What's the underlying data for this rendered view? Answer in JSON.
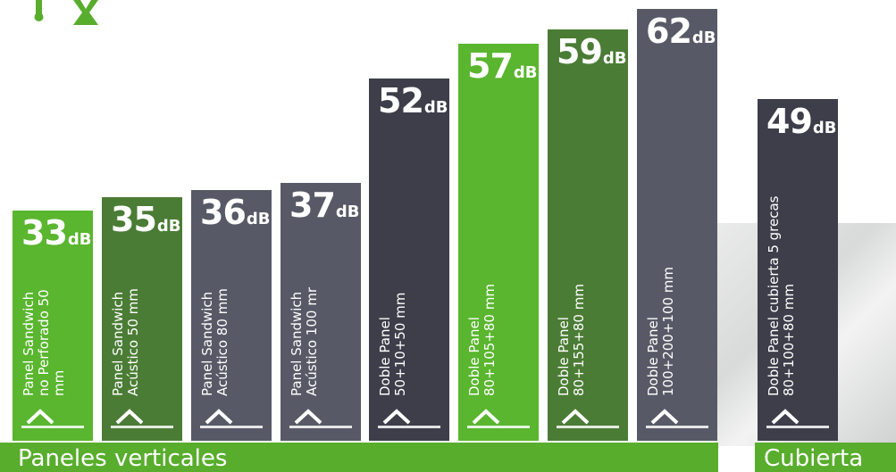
{
  "colors": {
    "green": "#5ab52f",
    "dark_green": "#4b7c35",
    "slate": "#575a66",
    "dark": "#3d3e4a",
    "band": "#58ad2d"
  },
  "chart_data": {
    "type": "bar",
    "unit": "dB",
    "ylim": [
      0,
      65
    ],
    "categories": [
      "Panel Sandwich no Perforado 50 mm",
      "Panel Sandwich Acústico 50 mm",
      "Panel Sandwich Acústico 80 mm",
      "Panel Sandwich Acústico 100 mr",
      "Doble Panel 50+10+50 mm",
      "Doble Panel 80+105+80 mm",
      "Doble Panel 80+155+80 mm",
      "Doble Panel 100+200+100 mm",
      "Doble Panel cubierta 5 grecas 80+100+80 mm"
    ],
    "values": [
      33,
      35,
      36,
      37,
      52,
      57,
      59,
      62,
      49
    ],
    "bars": [
      {
        "value": "33",
        "unit": "dB",
        "label_lines": [
          "Panel Sandwich",
          "no Perforado 50",
          "mm"
        ],
        "color": "green"
      },
      {
        "value": "35",
        "unit": "dB",
        "label_lines": [
          "Panel Sandwich",
          "Acústico 50 mm"
        ],
        "color": "dark_green"
      },
      {
        "value": "36",
        "unit": "dB",
        "label_lines": [
          "Panel Sandwich",
          "Acústico 80 mm"
        ],
        "color": "slate"
      },
      {
        "value": "37",
        "unit": "dB",
        "label_lines": [
          "Panel Sandwich",
          "Acústico 100 mr"
        ],
        "color": "slate"
      },
      {
        "value": "52",
        "unit": "dB",
        "label_lines": [
          "Doble Panel",
          "50+10+50 mm"
        ],
        "color": "dark"
      },
      {
        "value": "57",
        "unit": "dB",
        "label_lines": [
          "Doble Panel",
          "80+105+80 mm"
        ],
        "color": "green"
      },
      {
        "value": "59",
        "unit": "dB",
        "label_lines": [
          "Doble Panel",
          "80+155+80 mm"
        ],
        "color": "dark_green"
      },
      {
        "value": "62",
        "unit": "dB",
        "label_lines": [
          "Doble Panel",
          "100+200+100 mm"
        ],
        "color": "slate"
      },
      {
        "value": "49",
        "unit": "dB",
        "label_lines": [
          "Doble Panel cubierta 5 grecas",
          "80+100+80 mm"
        ],
        "color": "dark"
      }
    ],
    "groups": [
      {
        "name": "Paneles verticales"
      },
      {
        "name": "Cubierta"
      }
    ]
  }
}
